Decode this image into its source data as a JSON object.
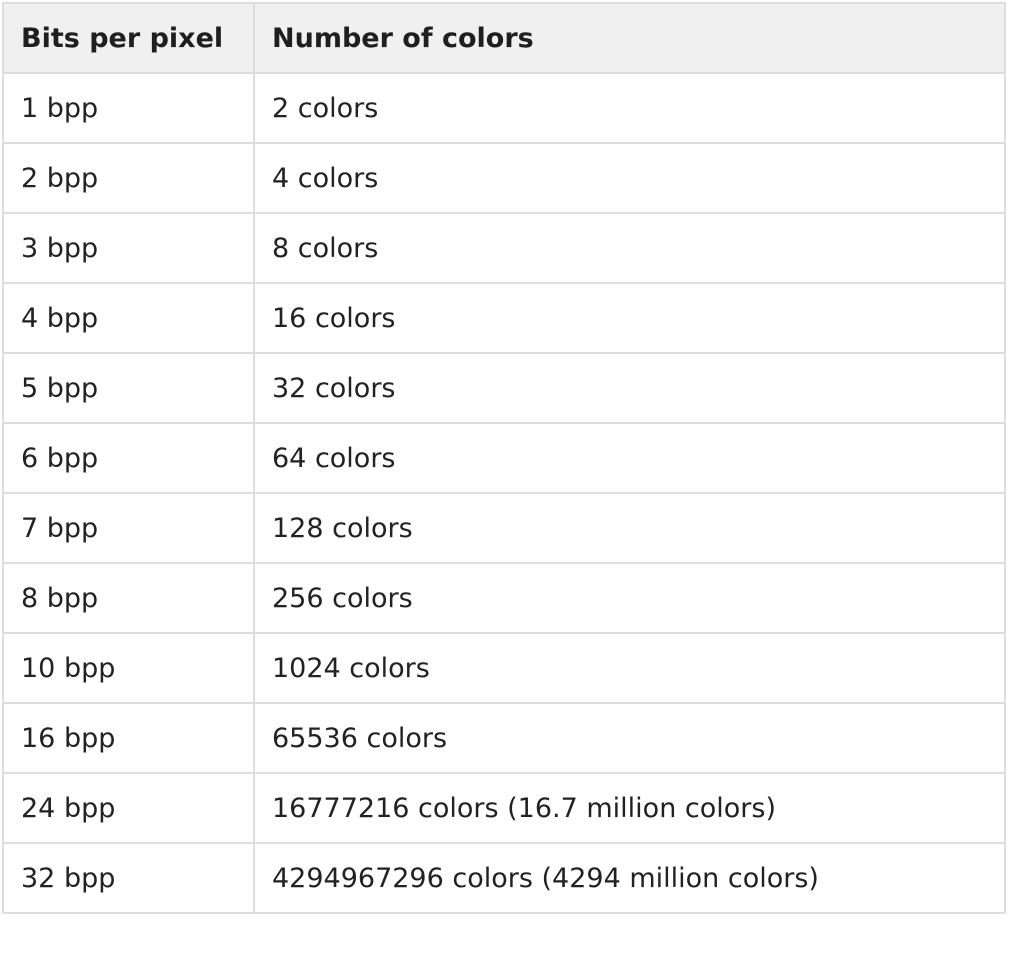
{
  "table": {
    "headers": [
      "Bits per pixel",
      "Number of colors"
    ],
    "rows": [
      [
        "1 bpp",
        "2 colors"
      ],
      [
        "2 bpp",
        "4 colors"
      ],
      [
        "3 bpp",
        "8 colors"
      ],
      [
        "4 bpp",
        "16 colors"
      ],
      [
        "5 bpp",
        "32 colors"
      ],
      [
        "6 bpp",
        "64 colors"
      ],
      [
        "7 bpp",
        "128 colors"
      ],
      [
        "8 bpp",
        "256 colors"
      ],
      [
        "10 bpp",
        "1024 colors"
      ],
      [
        "16 bpp",
        "65536 colors"
      ],
      [
        "24 bpp",
        "16777216 colors (16.7 million colors)"
      ],
      [
        "32 bpp",
        "4294967296 colors (4294 million colors)"
      ]
    ]
  }
}
